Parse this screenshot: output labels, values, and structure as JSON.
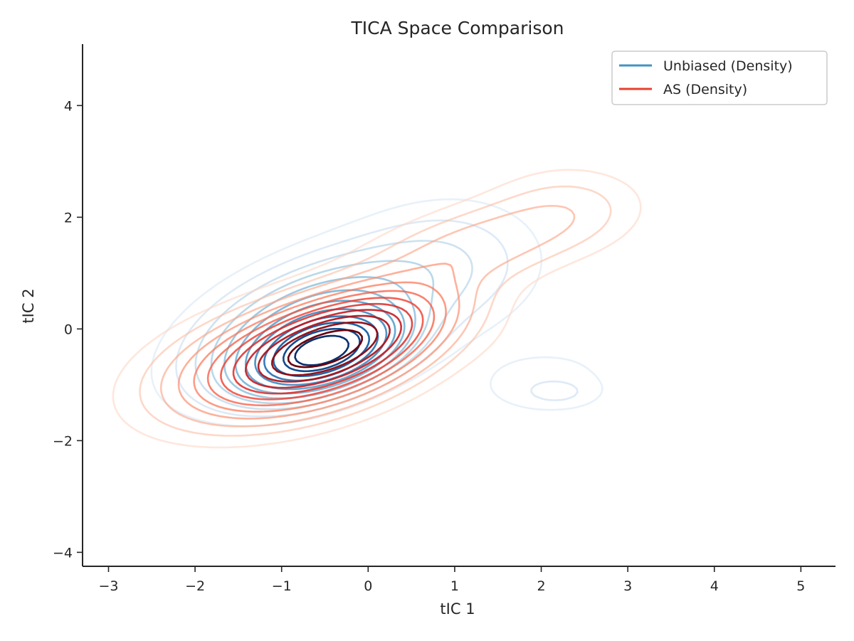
{
  "chart_data": {
    "type": "contour",
    "title": "TICA Space Comparison",
    "xlabel": "tIC 1",
    "ylabel": "tIC 2",
    "xlim": [
      -3.3,
      5.4
    ],
    "ylim": [
      -4.25,
      5.1
    ],
    "xticks": [
      -3,
      -2,
      -1,
      0,
      1,
      2,
      3,
      4,
      5
    ],
    "yticks": [
      -4,
      -2,
      0,
      2,
      4
    ],
    "xtick_labels": [
      "−3",
      "−2",
      "−1",
      "0",
      "1",
      "2",
      "3",
      "4",
      "5"
    ],
    "ytick_labels": [
      "−4",
      "−2",
      "0",
      "2",
      "4"
    ],
    "grid": false,
    "legend_position": "top-right",
    "series": [
      {
        "name": "Unbiased (Density)",
        "colormap": "Blues",
        "legend_color": "#4393c3",
        "levels": 12,
        "components": [
          {
            "mean": [
              -0.5,
              -0.45
            ],
            "sd": [
              0.55,
              0.45
            ],
            "rho": 0.45,
            "weight": 1.0
          },
          {
            "mean": [
              -0.7,
              0.1
            ],
            "sd": [
              0.8,
              0.75
            ],
            "rho": 0.5,
            "weight": 0.45
          },
          {
            "mean": [
              0.9,
              1.1
            ],
            "sd": [
              0.7,
              0.75
            ],
            "rho": 0.1,
            "weight": 0.12
          },
          {
            "mean": [
              2.2,
              -1.15
            ],
            "sd": [
              0.3,
              0.18
            ],
            "rho": 0.0,
            "weight": 0.06
          },
          {
            "mean": [
              2.0,
              -0.9
            ],
            "sd": [
              0.65,
              0.45
            ],
            "rho": 0.2,
            "weight": 0.05
          }
        ]
      },
      {
        "name": "AS (Density)",
        "colormap": "Reds",
        "legend_color": "#e8402f",
        "levels": 12,
        "components": [
          {
            "mean": [
              -0.35,
              -0.25
            ],
            "sd": [
              0.75,
              0.6
            ],
            "rho": 0.55,
            "weight": 1.0
          },
          {
            "mean": [
              -0.9,
              -0.6
            ],
            "sd": [
              0.9,
              0.65
            ],
            "rho": 0.4,
            "weight": 0.5
          },
          {
            "mean": [
              1.3,
              1.5
            ],
            "sd": [
              0.85,
              0.55
            ],
            "rho": 0.55,
            "weight": 0.2
          },
          {
            "mean": [
              2.3,
              2.2
            ],
            "sd": [
              0.55,
              0.5
            ],
            "rho": 0.0,
            "weight": 0.07
          },
          {
            "mean": [
              2.1,
              -0.6
            ],
            "sd": [
              0.5,
              0.6
            ],
            "rho": 0.0,
            "weight": 0.025
          }
        ]
      }
    ]
  }
}
